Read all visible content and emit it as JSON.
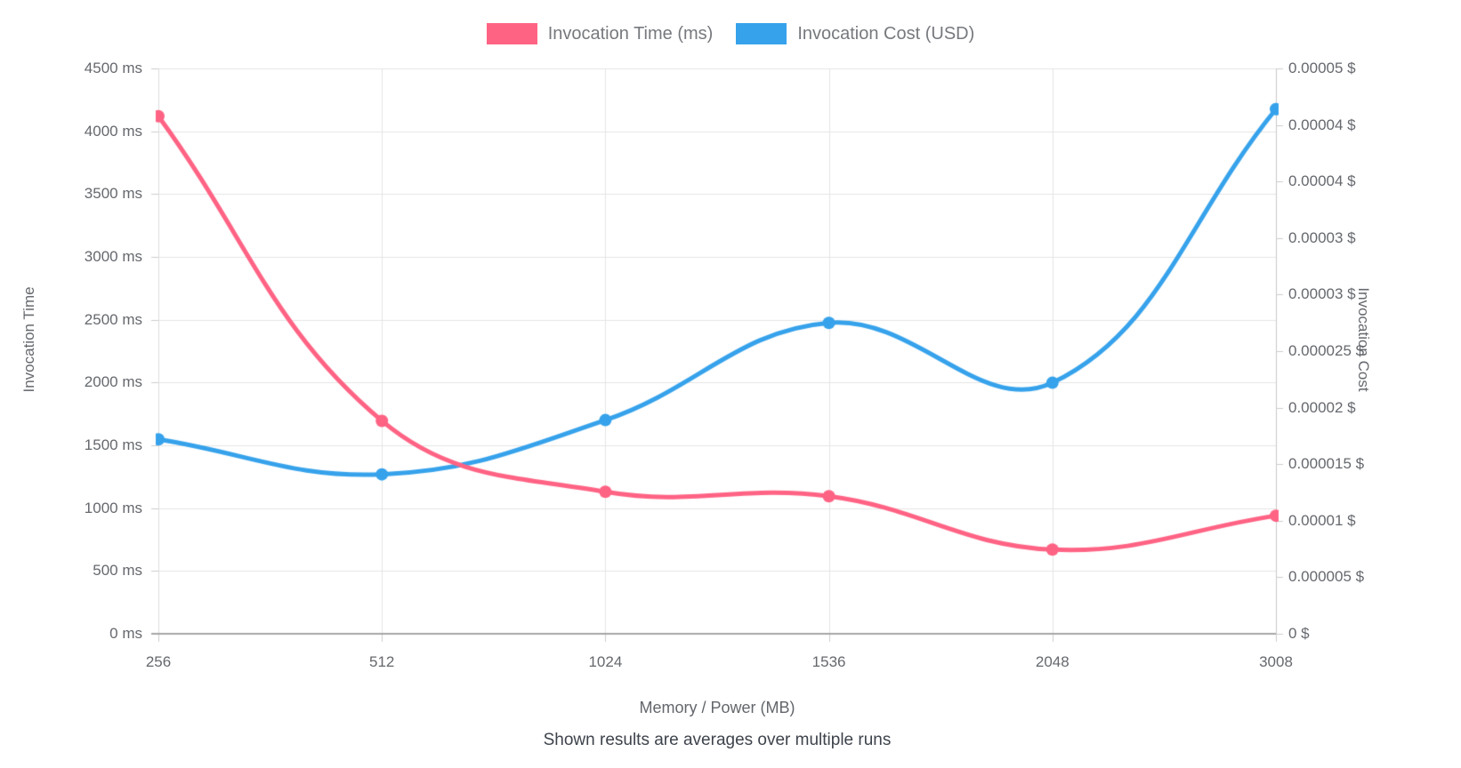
{
  "legend": {
    "items": [
      {
        "label": "Invocation Time (ms)",
        "color": "#FF6384"
      },
      {
        "label": "Invocation Cost (USD)",
        "color": "#36A2EB"
      }
    ]
  },
  "axes": {
    "left_title": "Invocation Time",
    "right_title": "Invocation Cost",
    "x_title": "Memory / Power (MB)",
    "caption": "Shown results are averages over multiple runs",
    "left_tick_labels": [
      "4500 ms",
      "4000 ms",
      "3500 ms",
      "3000 ms",
      "2500 ms",
      "2000 ms",
      "1500 ms",
      "1000 ms",
      "500 ms",
      "0 ms"
    ],
    "right_tick_labels": [
      "0.00005 $",
      "0.00004 $",
      "0.00004 $",
      "0.00003 $",
      "0.00003 $",
      "0.000025 $",
      "0.00002 $",
      "0.000015 $",
      "0.00001 $",
      "0.000005 $",
      "0 $"
    ],
    "x_tick_labels": [
      "256",
      "512",
      "1024",
      "1536",
      "2048",
      "3008"
    ]
  },
  "chart_data": {
    "type": "line",
    "x": [
      256,
      512,
      1024,
      1536,
      2048,
      3008
    ],
    "xlabel": "Memory / Power (MB)",
    "subtitle": "Shown results are averages over multiple runs",
    "legend_position": "top",
    "grid": true,
    "smooth": true,
    "series": [
      {
        "name": "Invocation Time (ms)",
        "axis": "left",
        "color": "#FF6384",
        "values": [
          4120,
          1695,
          1130,
          1095,
          670,
          940
        ]
      },
      {
        "name": "Invocation Cost (USD)",
        "axis": "right",
        "color": "#36A2EB",
        "values": [
          1.72e-05,
          1.41e-05,
          1.89e-05,
          2.75e-05,
          2.22e-05,
          4.64e-05
        ]
      }
    ],
    "left_axis": {
      "title": "Invocation Time",
      "unit": "ms",
      "min": 0,
      "max": 4500,
      "step": 500
    },
    "right_axis": {
      "title": "Invocation Cost",
      "unit": "$",
      "min": 0,
      "max": 5e-05,
      "step": 5e-06
    },
    "colors": {
      "grid": "#e5e5e5",
      "tick": "#cccccc",
      "bottom_border": "#a6a6a6",
      "right_border": "#c9c9c9",
      "left_border": "#dddddd"
    }
  }
}
